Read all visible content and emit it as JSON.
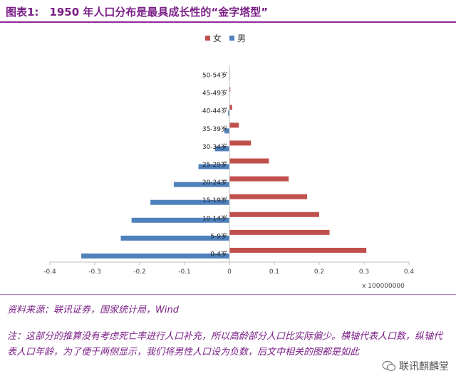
{
  "header": {
    "title": "图表1:　1950 年人口分布是最具成长性的“金字塔型”"
  },
  "footer": {
    "source": "资料来源：联讯证券，国家统计局，Wind",
    "note": "注：这部分的推算没有考虑死亡率进行人口补充，所以高龄部分人口比实际偏少。横轴代表人口数，纵轴代表人口年龄，为了便于两侧显示，我们将男性人口设为负数，后文中相关的图都是如此",
    "watermark": "联讯麒麟堂"
  },
  "colors": {
    "female": "#c0504d",
    "male": "#4f81bd",
    "brand": "#7a1f86"
  },
  "chart_data": {
    "type": "bar",
    "orientation": "horizontal",
    "categories": [
      "0-4岁",
      "5-9岁",
      "10-14岁",
      "15-19岁",
      "20-24岁",
      "25-29岁",
      "30-34岁",
      "35-39岁",
      "40-44岁",
      "45-49岁",
      "50-54岁"
    ],
    "series": [
      {
        "name": "女",
        "color": "#c0504d",
        "values": [
          0.305,
          0.223,
          0.2,
          0.173,
          0.132,
          0.088,
          0.048,
          0.021,
          0.006,
          0.002,
          0.001
        ]
      },
      {
        "name": "男",
        "color": "#4f81bd",
        "values": [
          -0.33,
          -0.242,
          -0.218,
          -0.176,
          -0.124,
          -0.069,
          -0.032,
          -0.011,
          -0.003,
          -0.001,
          0.0
        ]
      }
    ],
    "xlim": [
      -0.4,
      0.4
    ],
    "xticks": [
      "-0.4",
      "-0.3",
      "-0.2",
      "-0.1",
      "0",
      "0.1",
      "0.2",
      "0.3",
      "0.4"
    ],
    "xtick_values": [
      -0.4,
      -0.3,
      -0.2,
      -0.1,
      0,
      0.1,
      0.2,
      0.3,
      0.4
    ],
    "multiplier_label": "x 100000000",
    "legend": [
      "女",
      "男"
    ],
    "legend_position": "top-center",
    "grid": false
  }
}
